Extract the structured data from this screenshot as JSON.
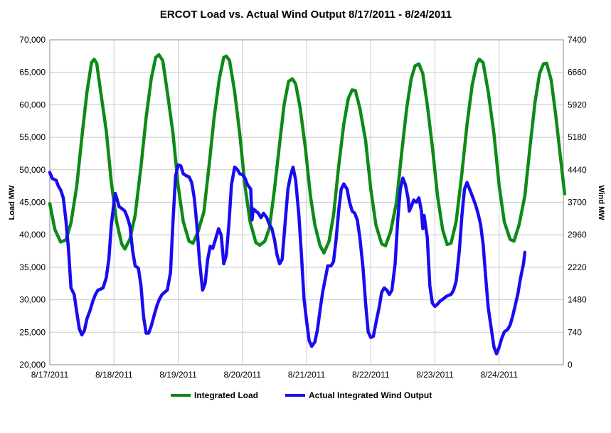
{
  "chart_data": {
    "type": "line",
    "title": "ERCOT Load vs. Actual Wind Output 8/17/2011 - 8/24/2011",
    "ylabel": "Load MW",
    "y2label": "Wind MW",
    "ylim": [
      20000,
      70000
    ],
    "yticks": [
      "20,000",
      "25,000",
      "30,000",
      "35,000",
      "40,000",
      "45,000",
      "50,000",
      "55,000",
      "60,000",
      "65,000",
      "70,000"
    ],
    "y2lim": [
      0,
      7400
    ],
    "y2ticks": [
      "0",
      "740",
      "1480",
      "2220",
      "2960",
      "3700",
      "4440",
      "5180",
      "5920",
      "6660",
      "7400"
    ],
    "xlim": [
      0,
      8
    ],
    "xticks": [
      "8/17/2011",
      "8/18/2011",
      "8/19/2011",
      "8/20/2011",
      "8/21/2011",
      "8/22/2011",
      "8/23/2011",
      "8/24/2011"
    ],
    "grid": true,
    "legend": "bottom",
    "series": [
      {
        "name": "Integrated Load",
        "axis": "left",
        "color": "#0e8a16",
        "points": [
          [
            0.0,
            44800
          ],
          [
            0.08,
            40800
          ],
          [
            0.17,
            38900
          ],
          [
            0.25,
            39200
          ],
          [
            0.33,
            41800
          ],
          [
            0.42,
            47500
          ],
          [
            0.5,
            55000
          ],
          [
            0.58,
            62000
          ],
          [
            0.65,
            66500
          ],
          [
            0.69,
            67000
          ],
          [
            0.73,
            66400
          ],
          [
            0.8,
            61500
          ],
          [
            0.88,
            56000
          ],
          [
            0.96,
            48000
          ],
          [
            1.04,
            42000
          ],
          [
            1.12,
            38600
          ],
          [
            1.17,
            37800
          ],
          [
            1.25,
            39400
          ],
          [
            1.33,
            43000
          ],
          [
            1.42,
            50500
          ],
          [
            1.5,
            58000
          ],
          [
            1.58,
            64000
          ],
          [
            1.65,
            67300
          ],
          [
            1.7,
            67700
          ],
          [
            1.76,
            66800
          ],
          [
            1.83,
            62000
          ],
          [
            1.92,
            55500
          ],
          [
            2.0,
            47500
          ],
          [
            2.08,
            42000
          ],
          [
            2.17,
            39000
          ],
          [
            2.23,
            38700
          ],
          [
            2.31,
            40500
          ],
          [
            2.4,
            43500
          ],
          [
            2.48,
            50500
          ],
          [
            2.56,
            58000
          ],
          [
            2.64,
            64000
          ],
          [
            2.71,
            67300
          ],
          [
            2.75,
            67500
          ],
          [
            2.8,
            66800
          ],
          [
            2.88,
            62000
          ],
          [
            2.96,
            55500
          ],
          [
            3.04,
            47500
          ],
          [
            3.12,
            42000
          ],
          [
            3.21,
            38800
          ],
          [
            3.27,
            38400
          ],
          [
            3.35,
            39000
          ],
          [
            3.42,
            41000
          ],
          [
            3.5,
            47000
          ],
          [
            3.58,
            54000
          ],
          [
            3.65,
            60000
          ],
          [
            3.72,
            63600
          ],
          [
            3.78,
            64000
          ],
          [
            3.83,
            63200
          ],
          [
            3.9,
            59500
          ],
          [
            3.98,
            53500
          ],
          [
            4.06,
            46000
          ],
          [
            4.13,
            41500
          ],
          [
            4.21,
            38300
          ],
          [
            4.27,
            37200
          ],
          [
            4.35,
            39000
          ],
          [
            4.42,
            43000
          ],
          [
            4.5,
            50500
          ],
          [
            4.58,
            57000
          ],
          [
            4.65,
            61000
          ],
          [
            4.71,
            62300
          ],
          [
            4.76,
            62200
          ],
          [
            4.83,
            59500
          ],
          [
            4.92,
            54500
          ],
          [
            5.0,
            47000
          ],
          [
            5.08,
            41500
          ],
          [
            5.17,
            38600
          ],
          [
            5.23,
            38300
          ],
          [
            5.31,
            40500
          ],
          [
            5.4,
            45000
          ],
          [
            5.48,
            52500
          ],
          [
            5.56,
            59500
          ],
          [
            5.63,
            64000
          ],
          [
            5.69,
            66000
          ],
          [
            5.75,
            66300
          ],
          [
            5.81,
            64800
          ],
          [
            5.88,
            60000
          ],
          [
            5.96,
            53500
          ],
          [
            6.04,
            46000
          ],
          [
            6.12,
            40800
          ],
          [
            6.19,
            38500
          ],
          [
            6.25,
            38700
          ],
          [
            6.33,
            42000
          ],
          [
            6.42,
            49500
          ],
          [
            6.5,
            57000
          ],
          [
            6.58,
            63000
          ],
          [
            6.65,
            66300
          ],
          [
            6.69,
            67000
          ],
          [
            6.75,
            66500
          ],
          [
            6.83,
            62000
          ],
          [
            6.92,
            55500
          ],
          [
            7.0,
            47500
          ],
          [
            7.08,
            42000
          ],
          [
            7.17,
            39300
          ],
          [
            7.23,
            39000
          ],
          [
            7.31,
            41500
          ],
          [
            7.4,
            46000
          ],
          [
            7.48,
            53500
          ],
          [
            7.56,
            60500
          ],
          [
            7.63,
            64800
          ],
          [
            7.69,
            66300
          ],
          [
            7.74,
            66400
          ],
          [
            7.81,
            63800
          ],
          [
            7.88,
            58500
          ],
          [
            7.96,
            51500
          ],
          [
            8.02,
            46300
          ]
        ]
      },
      {
        "name": "Actual Integrated Wind Output",
        "axis": "right",
        "color": "#1a0cf0",
        "points": [
          [
            0.0,
            4380
          ],
          [
            0.04,
            4240
          ],
          [
            0.1,
            4200
          ],
          [
            0.13,
            4080
          ],
          [
            0.17,
            3980
          ],
          [
            0.21,
            3800
          ],
          [
            0.25,
            3300
          ],
          [
            0.29,
            2650
          ],
          [
            0.33,
            1750
          ],
          [
            0.38,
            1600
          ],
          [
            0.42,
            1200
          ],
          [
            0.46,
            820
          ],
          [
            0.5,
            680
          ],
          [
            0.54,
            780
          ],
          [
            0.58,
            1050
          ],
          [
            0.63,
            1250
          ],
          [
            0.67,
            1450
          ],
          [
            0.71,
            1600
          ],
          [
            0.75,
            1700
          ],
          [
            0.79,
            1720
          ],
          [
            0.83,
            1750
          ],
          [
            0.88,
            1980
          ],
          [
            0.92,
            2400
          ],
          [
            0.96,
            3200
          ],
          [
            1.0,
            3700
          ],
          [
            1.02,
            3900
          ],
          [
            1.04,
            3800
          ],
          [
            1.08,
            3600
          ],
          [
            1.13,
            3550
          ],
          [
            1.17,
            3500
          ],
          [
            1.21,
            3350
          ],
          [
            1.25,
            3150
          ],
          [
            1.29,
            2600
          ],
          [
            1.33,
            2250
          ],
          [
            1.38,
            2200
          ],
          [
            1.42,
            1800
          ],
          [
            1.46,
            1100
          ],
          [
            1.5,
            720
          ],
          [
            1.54,
            720
          ],
          [
            1.58,
            880
          ],
          [
            1.63,
            1150
          ],
          [
            1.67,
            1350
          ],
          [
            1.71,
            1500
          ],
          [
            1.75,
            1600
          ],
          [
            1.79,
            1650
          ],
          [
            1.83,
            1700
          ],
          [
            1.88,
            2100
          ],
          [
            1.92,
            3300
          ],
          [
            1.96,
            4300
          ],
          [
            2.0,
            4550
          ],
          [
            2.04,
            4530
          ],
          [
            2.08,
            4350
          ],
          [
            2.13,
            4300
          ],
          [
            2.17,
            4280
          ],
          [
            2.21,
            4150
          ],
          [
            2.25,
            3800
          ],
          [
            2.29,
            3200
          ],
          [
            2.33,
            2400
          ],
          [
            2.38,
            1700
          ],
          [
            2.42,
            1850
          ],
          [
            2.46,
            2400
          ],
          [
            2.5,
            2700
          ],
          [
            2.54,
            2650
          ],
          [
            2.58,
            2850
          ],
          [
            2.63,
            3100
          ],
          [
            2.67,
            2950
          ],
          [
            2.71,
            2300
          ],
          [
            2.75,
            2500
          ],
          [
            2.79,
            3200
          ],
          [
            2.83,
            4100
          ],
          [
            2.88,
            4500
          ],
          [
            2.92,
            4450
          ],
          [
            2.96,
            4350
          ],
          [
            3.0,
            4330
          ],
          [
            3.04,
            4250
          ],
          [
            3.08,
            4100
          ],
          [
            3.13,
            4000
          ],
          [
            3.15,
            3300
          ],
          [
            3.17,
            3550
          ],
          [
            3.21,
            3500
          ],
          [
            3.25,
            3450
          ],
          [
            3.29,
            3350
          ],
          [
            3.33,
            3450
          ],
          [
            3.38,
            3350
          ],
          [
            3.42,
            3200
          ],
          [
            3.46,
            3100
          ],
          [
            3.5,
            2850
          ],
          [
            3.54,
            2500
          ],
          [
            3.58,
            2300
          ],
          [
            3.62,
            2400
          ],
          [
            3.67,
            3300
          ],
          [
            3.71,
            4000
          ],
          [
            3.75,
            4300
          ],
          [
            3.79,
            4500
          ],
          [
            3.83,
            4200
          ],
          [
            3.88,
            3400
          ],
          [
            3.92,
            2500
          ],
          [
            3.96,
            1500
          ],
          [
            4.0,
            1000
          ],
          [
            4.04,
            550
          ],
          [
            4.08,
            420
          ],
          [
            4.13,
            520
          ],
          [
            4.17,
            800
          ],
          [
            4.21,
            1250
          ],
          [
            4.25,
            1650
          ],
          [
            4.29,
            1950
          ],
          [
            4.33,
            2250
          ],
          [
            4.38,
            2250
          ],
          [
            4.42,
            2350
          ],
          [
            4.46,
            2850
          ],
          [
            4.5,
            3500
          ],
          [
            4.54,
            4000
          ],
          [
            4.58,
            4120
          ],
          [
            4.63,
            4000
          ],
          [
            4.67,
            3700
          ],
          [
            4.71,
            3500
          ],
          [
            4.75,
            3450
          ],
          [
            4.79,
            3300
          ],
          [
            4.83,
            2900
          ],
          [
            4.88,
            2200
          ],
          [
            4.92,
            1400
          ],
          [
            4.96,
            750
          ],
          [
            5.0,
            620
          ],
          [
            5.04,
            650
          ],
          [
            5.08,
            950
          ],
          [
            5.13,
            1300
          ],
          [
            5.17,
            1650
          ],
          [
            5.21,
            1750
          ],
          [
            5.25,
            1700
          ],
          [
            5.29,
            1600
          ],
          [
            5.33,
            1700
          ],
          [
            5.38,
            2300
          ],
          [
            5.42,
            3300
          ],
          [
            5.46,
            4000
          ],
          [
            5.5,
            4250
          ],
          [
            5.54,
            4100
          ],
          [
            5.58,
            3800
          ],
          [
            5.6,
            3500
          ],
          [
            5.63,
            3600
          ],
          [
            5.67,
            3750
          ],
          [
            5.71,
            3700
          ],
          [
            5.75,
            3800
          ],
          [
            5.79,
            3500
          ],
          [
            5.81,
            3100
          ],
          [
            5.83,
            3400
          ],
          [
            5.88,
            2900
          ],
          [
            5.92,
            1800
          ],
          [
            5.96,
            1400
          ],
          [
            6.0,
            1330
          ],
          [
            6.04,
            1380
          ],
          [
            6.08,
            1450
          ],
          [
            6.13,
            1500
          ],
          [
            6.17,
            1550
          ],
          [
            6.21,
            1580
          ],
          [
            6.25,
            1600
          ],
          [
            6.29,
            1700
          ],
          [
            6.33,
            1900
          ],
          [
            6.38,
            2600
          ],
          [
            6.42,
            3400
          ],
          [
            6.46,
            4000
          ],
          [
            6.5,
            4150
          ],
          [
            6.54,
            4000
          ],
          [
            6.58,
            3850
          ],
          [
            6.63,
            3650
          ],
          [
            6.67,
            3450
          ],
          [
            6.71,
            3200
          ],
          [
            6.75,
            2750
          ],
          [
            6.79,
            2000
          ],
          [
            6.83,
            1300
          ],
          [
            6.88,
            800
          ],
          [
            6.92,
            400
          ],
          [
            6.96,
            250
          ],
          [
            7.0,
            400
          ],
          [
            7.04,
            600
          ],
          [
            7.08,
            750
          ],
          [
            7.13,
            800
          ],
          [
            7.17,
            900
          ],
          [
            7.21,
            1100
          ],
          [
            7.25,
            1350
          ],
          [
            7.29,
            1600
          ],
          [
            7.33,
            1950
          ],
          [
            7.38,
            2300
          ],
          [
            7.4,
            2560
          ]
        ]
      }
    ]
  }
}
